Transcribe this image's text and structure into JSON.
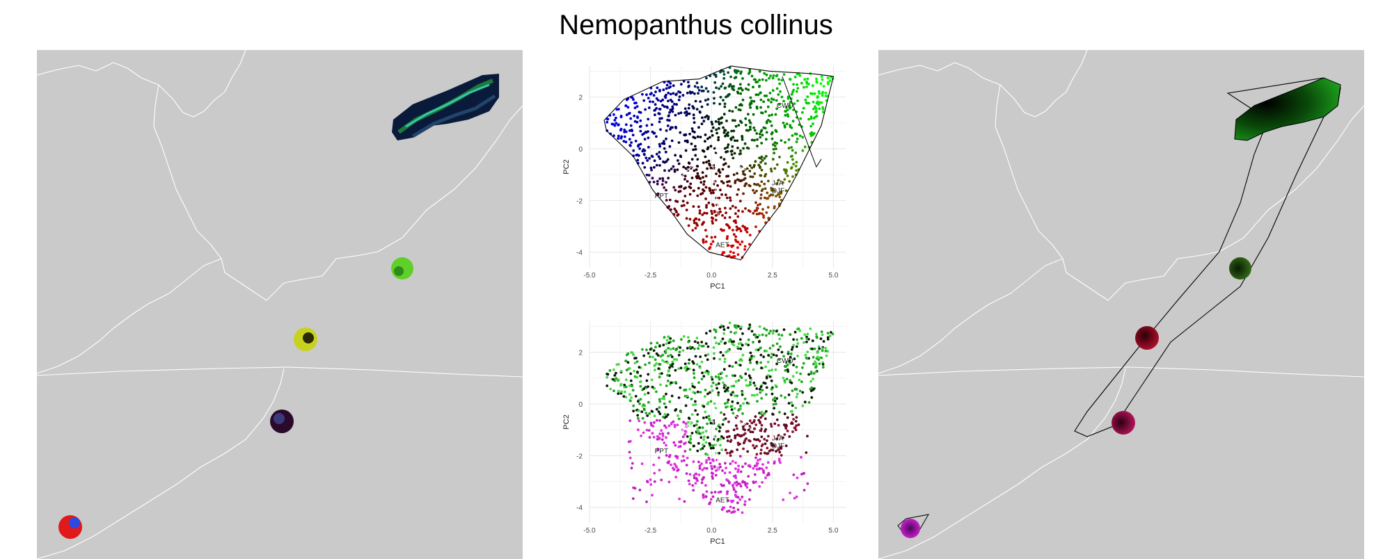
{
  "title": "Nemopanthus collinus",
  "colors": {
    "map_bg": "#cacaca",
    "border": "#ffffff",
    "grid": "#e6e6e6"
  },
  "chart_data": [
    {
      "type": "scatter",
      "panel": "pca-top",
      "title": "",
      "xlabel": "PC1",
      "ylabel": "PC2",
      "xlim": [
        -5.0,
        5.5
      ],
      "ylim": [
        -4.6,
        3.2
      ],
      "xticks": [
        -5.0,
        -2.5,
        0.0,
        2.5,
        5.0
      ],
      "xtick_labels": [
        "-5.0",
        "-2.5",
        "0.0",
        "2.5",
        "5.0"
      ],
      "yticks": [
        2,
        0,
        -2,
        -4
      ],
      "ytick_labels": [
        "2",
        "0",
        "-2",
        "-4"
      ],
      "grid": true,
      "color_scheme": "RGB by PC position",
      "variables": [
        {
          "name": "CWD",
          "x": 2.9,
          "y": 1.7
        },
        {
          "name": "JJA",
          "x": 2.7,
          "y": -1.3
        },
        {
          "name": "DJF",
          "x": 2.7,
          "y": -1.6
        },
        {
          "name": "PPT",
          "x": -2.1,
          "y": -1.8
        },
        {
          "name": "AET",
          "x": 0.4,
          "y": -3.7
        }
      ],
      "hull": [
        [
          -4.4,
          1.1
        ],
        [
          -3.6,
          1.9
        ],
        [
          -2.0,
          2.6
        ],
        [
          -0.5,
          2.7
        ],
        [
          0.8,
          3.2
        ],
        [
          2.4,
          3.0
        ],
        [
          4.2,
          2.9
        ],
        [
          5.0,
          2.8
        ],
        [
          4.5,
          0.9
        ],
        [
          3.5,
          -1.0
        ],
        [
          2.8,
          -2.2
        ],
        [
          2.0,
          -3.2
        ],
        [
          1.2,
          -4.3
        ],
        [
          -0.1,
          -4.0
        ],
        [
          -1.0,
          -3.3
        ],
        [
          -1.6,
          -2.5
        ],
        [
          -2.4,
          -1.6
        ],
        [
          -3.2,
          -0.3
        ],
        [
          -4.3,
          0.7
        ]
      ]
    },
    {
      "type": "scatter",
      "panel": "pca-bottom",
      "title": "",
      "xlabel": "PC1",
      "ylabel": "PC2",
      "xlim": [
        -5.0,
        5.5
      ],
      "ylim": [
        -4.6,
        3.2
      ],
      "xticks": [
        -5.0,
        -2.5,
        0.0,
        2.5,
        5.0
      ],
      "xtick_labels": [
        "-5.0",
        "-2.5",
        "0.0",
        "2.5",
        "5.0"
      ],
      "yticks": [
        2,
        0,
        -2,
        -4
      ],
      "ytick_labels": [
        "2",
        "0",
        "-2",
        "-4"
      ],
      "grid": true,
      "color_scheme": "green / dark red / magenta",
      "variables": [
        {
          "name": "CWD",
          "x": 2.9,
          "y": 1.7
        },
        {
          "name": "JJA",
          "x": 2.7,
          "y": -1.3
        },
        {
          "name": "DJF",
          "x": 2.7,
          "y": -1.6
        },
        {
          "name": "PPT",
          "x": -2.1,
          "y": -1.8
        },
        {
          "name": "AET",
          "x": 0.4,
          "y": -3.7
        }
      ]
    }
  ],
  "maps": {
    "left": {
      "patches": [
        {
          "name": "north-range-patch",
          "colors": [
            "#0a1a3a",
            "#22446a",
            "#1e7a3a",
            "#36c8a8",
            "#000000"
          ]
        },
        {
          "name": "patch-2",
          "colors": [
            "#5fd02a",
            "#2f8a1a"
          ]
        },
        {
          "name": "patch-3",
          "colors": [
            "#c8d21e",
            "#2a2a08"
          ]
        },
        {
          "name": "patch-4",
          "colors": [
            "#3a3a7a",
            "#2a0a2a"
          ]
        },
        {
          "name": "patch-5",
          "colors": [
            "#e01a1a",
            "#2a4ae0"
          ]
        }
      ]
    },
    "right": {
      "patches": [
        {
          "name": "north-range-patch",
          "colors": [
            "#1fb01f",
            "#000000"
          ]
        },
        {
          "name": "patch-2",
          "colors": [
            "#3a7a1a",
            "#0a1a05"
          ]
        },
        {
          "name": "patch-3",
          "colors": [
            "#c01030",
            "#2a0008"
          ]
        },
        {
          "name": "patch-4",
          "colors": [
            "#d01868",
            "#2a0010"
          ]
        },
        {
          "name": "patch-5",
          "colors": [
            "#e020e0",
            "#4a0a5a"
          ]
        }
      ]
    }
  }
}
